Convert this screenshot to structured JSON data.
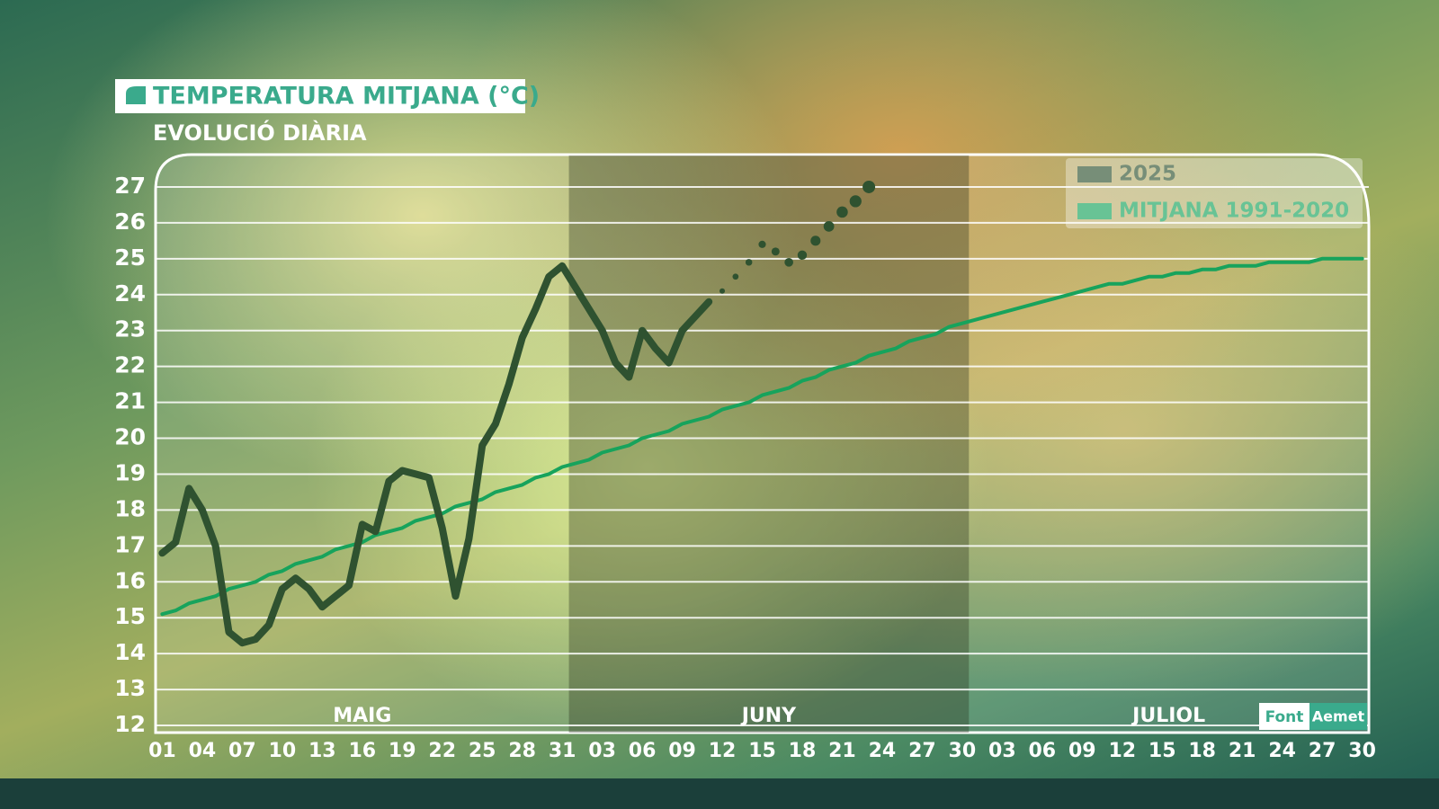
{
  "chart_data": {
    "type": "line",
    "title": "TEMPERATURA MITJANA (°C)",
    "subtitle": "EVOLUCIÓ DIÀRIA",
    "categories": [
      "01",
      null,
      null,
      "04",
      null,
      null,
      "07",
      null,
      null,
      "10",
      null,
      null,
      "13",
      null,
      null,
      "16",
      null,
      null,
      "19",
      null,
      null,
      "22",
      null,
      null,
      "25",
      null,
      null,
      "28",
      null,
      null,
      "31",
      null,
      null,
      "03",
      null,
      null,
      "06",
      null,
      null,
      "09",
      null,
      null,
      "12",
      null,
      null,
      "15",
      null,
      null,
      "18",
      null,
      null,
      "21",
      null,
      null,
      "24",
      null,
      null,
      "27",
      null,
      null,
      "30",
      null,
      null,
      "03",
      null,
      null,
      "06",
      null,
      null,
      "09",
      null,
      null,
      "12",
      null,
      null,
      "15",
      null,
      null,
      "18",
      null,
      null,
      "21",
      null,
      null,
      "24",
      null,
      null,
      "27",
      null,
      null,
      "30"
    ],
    "months": [
      "MAIG",
      "JUNY",
      "JULIOL"
    ],
    "series": [
      {
        "name": "2025",
        "color": "#2f5230",
        "values": [
          16.8,
          17.1,
          18.6,
          18.0,
          17.0,
          14.6,
          14.3,
          14.4,
          14.8,
          15.8,
          16.1,
          15.8,
          15.3,
          15.6,
          15.9,
          17.6,
          17.4,
          18.8,
          19.1,
          19.0,
          18.9,
          17.5,
          15.6,
          17.2,
          19.8,
          20.4,
          21.5,
          22.8,
          23.6,
          24.5,
          24.8,
          24.2,
          23.6,
          23.0,
          22.1,
          21.7,
          23.0,
          22.5,
          22.1,
          23.0,
          23.4,
          23.8,
          null,
          null,
          null,
          null,
          null,
          null,
          null,
          null,
          null,
          null,
          null,
          null,
          null,
          null,
          null,
          null,
          null,
          null,
          null,
          null,
          null,
          null,
          null,
          null,
          null,
          null,
          null,
          null,
          null,
          null,
          null,
          null,
          null,
          null,
          null,
          null,
          null,
          null,
          null,
          null,
          null,
          null,
          null,
          null,
          null,
          null,
          null,
          null,
          null
        ]
      },
      {
        "name": "MITJANA 1991-2020",
        "color": "#17a35c",
        "values": [
          15.1,
          15.2,
          15.4,
          15.5,
          15.6,
          15.8,
          15.9,
          16.0,
          16.2,
          16.3,
          16.5,
          16.6,
          16.7,
          16.9,
          17.0,
          17.1,
          17.3,
          17.4,
          17.5,
          17.7,
          17.8,
          17.9,
          18.1,
          18.2,
          18.3,
          18.5,
          18.6,
          18.7,
          18.9,
          19.0,
          19.2,
          19.3,
          19.4,
          19.6,
          19.7,
          19.8,
          20.0,
          20.1,
          20.2,
          20.4,
          20.5,
          20.6,
          20.8,
          20.9,
          21.0,
          21.2,
          21.3,
          21.4,
          21.6,
          21.7,
          21.9,
          22.0,
          22.1,
          22.3,
          22.4,
          22.5,
          22.7,
          22.8,
          22.9,
          23.1,
          23.2,
          23.3,
          23.4,
          23.5,
          23.6,
          23.7,
          23.8,
          23.9,
          24.0,
          24.1,
          24.2,
          24.3,
          24.3,
          24.4,
          24.5,
          24.5,
          24.6,
          24.6,
          24.7,
          24.7,
          24.8,
          24.8,
          24.8,
          24.9,
          24.9,
          24.9,
          24.9,
          25.0,
          25.0,
          25.0,
          25.0
        ]
      }
    ],
    "forecast": {
      "color": "#2f5230",
      "style": "dotted",
      "values": [
        null,
        null,
        null,
        null,
        null,
        null,
        null,
        null,
        null,
        null,
        null,
        null,
        null,
        null,
        null,
        null,
        null,
        null,
        null,
        null,
        null,
        null,
        null,
        null,
        null,
        null,
        null,
        null,
        null,
        null,
        null,
        null,
        null,
        null,
        null,
        null,
        null,
        null,
        null,
        null,
        null,
        null,
        24.1,
        24.5,
        24.9,
        25.4,
        25.2,
        24.9,
        25.1,
        25.5,
        25.9,
        26.3,
        26.6,
        27.0,
        null,
        null,
        null,
        null,
        null,
        null,
        null,
        null,
        null,
        null,
        null,
        null,
        null,
        null,
        null,
        null,
        null,
        null,
        null,
        null,
        null,
        null,
        null,
        null,
        null,
        null,
        null,
        null,
        null,
        null,
        null,
        null,
        null,
        null,
        null
      ]
    },
    "ylim": [
      11.8,
      27.9
    ],
    "yticks": [
      12,
      13,
      14,
      15,
      16,
      17,
      18,
      19,
      20,
      21,
      22,
      23,
      24,
      25,
      26,
      27
    ],
    "grid": true,
    "legend": "top-right",
    "source_label": "Font",
    "source": "Aemet"
  }
}
